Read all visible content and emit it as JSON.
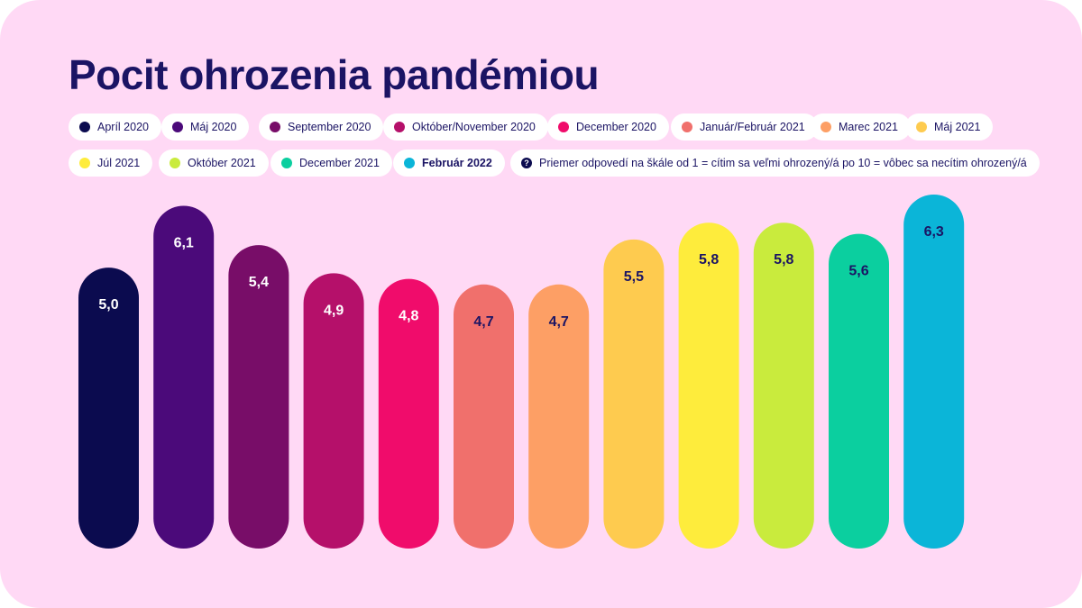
{
  "title": "Pocit ohrozenia pandémiou",
  "legend_note": "Priemer odpovedí na škále od 1 = cítim sa veľmi ohrozený/á po 10 = vôbec sa necítim ohrozený/á",
  "note_icon": "?",
  "chart_data": {
    "type": "bar",
    "title": "Pocit ohrozenia pandémiou",
    "categories": [
      "Apríl 2020",
      "Máj 2020",
      "September 2020",
      "Október/November 2020",
      "December 2020",
      "Január/Február 2021",
      "Marec 2021",
      "Máj 2021",
      "Júl 2021",
      "Október 2021",
      "December 2021",
      "Február 2022"
    ],
    "values": [
      5.0,
      6.1,
      5.4,
      4.9,
      4.8,
      4.7,
      4.7,
      5.5,
      5.8,
      5.8,
      5.6,
      6.3
    ],
    "value_labels": [
      "5,0",
      "6,1",
      "5,4",
      "4,9",
      "4,8",
      "4,7",
      "4,7",
      "5,5",
      "5,8",
      "5,8",
      "5,6",
      "6,3"
    ],
    "colors": [
      "#0b0b4f",
      "#4b0a7a",
      "#780d68",
      "#b5106a",
      "#f00c6b",
      "#f0706c",
      "#fd9f65",
      "#fecb4f",
      "#feec3c",
      "#c9eb3d",
      "#0bcf9f",
      "#0bb5d8"
    ],
    "label_colors": [
      "#ffffff",
      "#ffffff",
      "#ffffff",
      "#ffffff",
      "#ffffff",
      "#1b1464",
      "#1b1464",
      "#1b1464",
      "#1b1464",
      "#1b1464",
      "#1b1464",
      "#1b1464"
    ],
    "highlight": "Február 2022",
    "ylim": [
      0,
      6.3
    ],
    "grid": false,
    "legend_position": "top"
  }
}
